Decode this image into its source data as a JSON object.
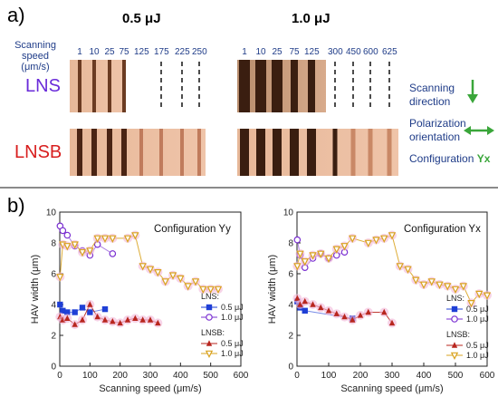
{
  "panel_a": {
    "label": "a)",
    "energy_left": "0.5 μJ",
    "energy_right": "1.0 μJ",
    "speed_caption_1": "Scanning speed",
    "speed_caption_2": "(μm/s)",
    "speeds_left": [
      "1",
      "10",
      "25",
      "75",
      "125",
      "175",
      "225",
      "250"
    ],
    "speeds_right": [
      "1",
      "10",
      "25",
      "75",
      "125",
      "300",
      "450",
      "600",
      "625"
    ],
    "row_lns": "LNS",
    "row_lnsb": "LNSB",
    "scanning_1": "Scanning",
    "scanning_2": "direction",
    "polarization_1": "Polarization",
    "polarization_2": "orientation",
    "configuration": "Configuration",
    "configuration_tag": "Yx",
    "colors": {
      "lns": "#6a2bd9",
      "lnsb": "#d81e1e",
      "arrow": "#3aa63a",
      "text": "#1f3c88"
    }
  },
  "panel_b": {
    "label": "b)"
  },
  "chart_data": [
    {
      "type": "scatter",
      "title": "Configuration Yy",
      "xlabel": "Scanning speed (μm/s)",
      "ylabel": "HAV width (μm)",
      "xlim": [
        0,
        600
      ],
      "ylim": [
        0,
        10
      ],
      "xticks": [
        0,
        100,
        200,
        300,
        400,
        500,
        600
      ],
      "yticks": [
        0,
        2,
        4,
        6,
        8,
        10
      ],
      "legend_lns": "LNS:",
      "legend_lnsb": "LNSB:",
      "series": [
        {
          "name": "0.5 μJ",
          "group": "LNS",
          "color": "#1f3fd6",
          "marker": "square",
          "points": [
            [
              1,
              4.0
            ],
            [
              10,
              3.6
            ],
            [
              25,
              3.5
            ],
            [
              50,
              3.5
            ],
            [
              75,
              3.8
            ],
            [
              100,
              3.5
            ],
            [
              150,
              3.7
            ]
          ]
        },
        {
          "name": "1.0 μJ",
          "group": "LNS",
          "color": "#7a2fd1",
          "marker": "circle",
          "points": [
            [
              1,
              9.1
            ],
            [
              10,
              8.8
            ],
            [
              25,
              8.5
            ],
            [
              50,
              7.8
            ],
            [
              75,
              7.5
            ],
            [
              100,
              7.2
            ],
            [
              125,
              7.9
            ],
            [
              175,
              7.3
            ]
          ]
        },
        {
          "name": "0.5 μJ",
          "group": "LNSB",
          "color": "#b8261e",
          "marker": "triangle",
          "points": [
            [
              1,
              3.2
            ],
            [
              10,
              3.0
            ],
            [
              25,
              3.1
            ],
            [
              50,
              2.7
            ],
            [
              75,
              3.0
            ],
            [
              100,
              4.0
            ],
            [
              125,
              3.2
            ],
            [
              150,
              3.0
            ],
            [
              175,
              2.9
            ],
            [
              200,
              2.8
            ],
            [
              225,
              3.0
            ],
            [
              250,
              3.1
            ],
            [
              275,
              3.0
            ],
            [
              300,
              3.0
            ],
            [
              325,
              2.8
            ]
          ]
        },
        {
          "name": "1.0 μJ",
          "group": "LNSB",
          "color": "#d9a31f",
          "marker": "triangle-down",
          "points": [
            [
              1,
              5.8
            ],
            [
              10,
              7.9
            ],
            [
              25,
              7.8
            ],
            [
              50,
              7.9
            ],
            [
              75,
              7.4
            ],
            [
              100,
              7.5
            ],
            [
              125,
              8.3
            ],
            [
              150,
              8.3
            ],
            [
              175,
              8.3
            ],
            [
              225,
              8.3
            ],
            [
              250,
              8.5
            ],
            [
              275,
              6.5
            ],
            [
              300,
              6.3
            ],
            [
              325,
              6.1
            ],
            [
              350,
              5.5
            ],
            [
              375,
              5.9
            ],
            [
              400,
              5.7
            ],
            [
              425,
              5.2
            ],
            [
              450,
              5.5
            ],
            [
              475,
              5.0
            ],
            [
              500,
              5.0
            ],
            [
              525,
              5.0
            ]
          ]
        }
      ]
    },
    {
      "type": "scatter",
      "title": "Configuration Yx",
      "xlabel": "Scanning speed (μm/s)",
      "ylabel": "HAV width (μm)",
      "xlim": [
        0,
        600
      ],
      "ylim": [
        0,
        10
      ],
      "xticks": [
        0,
        100,
        200,
        300,
        400,
        500,
        600
      ],
      "yticks": [
        0,
        2,
        4,
        6,
        8,
        10
      ],
      "legend_lns": "LNS:",
      "legend_lnsb": "LNSB:",
      "series": [
        {
          "name": "0.5 μJ",
          "group": "LNS",
          "color": "#1f3fd6",
          "marker": "square",
          "points": [
            [
              1,
              4.2
            ],
            [
              10,
              3.8
            ],
            [
              25,
              3.6
            ],
            [
              175,
              3.1
            ]
          ]
        },
        {
          "name": "1.0 μJ",
          "group": "LNS",
          "color": "#7a2fd1",
          "marker": "circle",
          "points": [
            [
              1,
              8.2
            ],
            [
              10,
              7.2
            ],
            [
              25,
              6.4
            ],
            [
              50,
              7.0
            ],
            [
              75,
              7.3
            ],
            [
              100,
              7.0
            ],
            [
              125,
              7.2
            ],
            [
              150,
              7.4
            ]
          ]
        },
        {
          "name": "0.5 μJ",
          "group": "LNSB",
          "color": "#b8261e",
          "marker": "triangle",
          "points": [
            [
              1,
              4.4
            ],
            [
              10,
              4.0
            ],
            [
              25,
              4.2
            ],
            [
              50,
              4.0
            ],
            [
              75,
              3.8
            ],
            [
              100,
              3.6
            ],
            [
              125,
              3.4
            ],
            [
              150,
              3.2
            ],
            [
              175,
              3.0
            ],
            [
              200,
              3.3
            ],
            [
              225,
              3.5
            ],
            [
              275,
              3.5
            ],
            [
              300,
              2.8
            ]
          ]
        },
        {
          "name": "1.0 μJ",
          "group": "LNSB",
          "color": "#d9a31f",
          "marker": "triangle-down",
          "points": [
            [
              1,
              6.5
            ],
            [
              10,
              7.3
            ],
            [
              25,
              6.8
            ],
            [
              50,
              7.2
            ],
            [
              75,
              7.3
            ],
            [
              100,
              7.0
            ],
            [
              125,
              7.6
            ],
            [
              150,
              7.8
            ],
            [
              175,
              8.3
            ],
            [
              225,
              8.0
            ],
            [
              250,
              8.2
            ],
            [
              275,
              8.3
            ],
            [
              300,
              8.5
            ],
            [
              325,
              6.5
            ],
            [
              350,
              6.3
            ],
            [
              375,
              5.6
            ],
            [
              400,
              5.3
            ],
            [
              425,
              5.5
            ],
            [
              450,
              5.3
            ],
            [
              475,
              5.2
            ],
            [
              500,
              5.0
            ],
            [
              525,
              5.2
            ],
            [
              550,
              4.1
            ],
            [
              575,
              4.7
            ],
            [
              600,
              4.6
            ]
          ]
        }
      ]
    }
  ]
}
